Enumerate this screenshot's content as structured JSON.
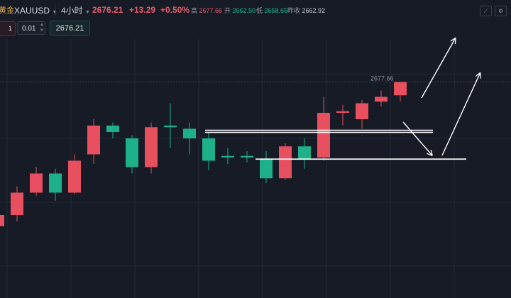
{
  "header": {
    "instrument_cn": "黄金",
    "symbol": "XAUUSD",
    "timeframe": "4小时",
    "last_price": "2676.21",
    "change": "+13.29",
    "change_pct": "+0.50%",
    "ohlc": [
      {
        "label": "高",
        "value": "2677.66",
        "tone": "red"
      },
      {
        "label": "开",
        "value": "2662.50",
        "tone": "green"
      },
      {
        "label": "低",
        "value": "2658.65",
        "tone": "green"
      },
      {
        "label": "昨收",
        "value": "2662.92",
        "tone": "neutral"
      }
    ]
  },
  "order": {
    "left_qty": "1",
    "quantity": "0.01",
    "price": "2676.21"
  },
  "chart_data": {
    "type": "candlestick",
    "price_label": "2677.66",
    "ylim": [
      2610,
      2690
    ],
    "candles": [
      {
        "o": 2632.5,
        "c": 2636.0,
        "h": 2638.0,
        "l": 2630.0
      },
      {
        "o": 2636.0,
        "c": 2643.0,
        "h": 2645.0,
        "l": 2634.0
      },
      {
        "o": 2643.0,
        "c": 2649.0,
        "h": 2651.0,
        "l": 2642.0
      },
      {
        "o": 2649.0,
        "c": 2643.0,
        "h": 2650.5,
        "l": 2640.5
      },
      {
        "o": 2643.0,
        "c": 2653.0,
        "h": 2655.0,
        "l": 2642.5
      },
      {
        "o": 2655.0,
        "c": 2664.0,
        "h": 2666.0,
        "l": 2652.0
      },
      {
        "o": 2664.0,
        "c": 2662.0,
        "h": 2665.0,
        "l": 2660.0
      },
      {
        "o": 2660.0,
        "c": 2651.0,
        "h": 2661.0,
        "l": 2649.0
      },
      {
        "o": 2651.0,
        "c": 2663.5,
        "h": 2665.0,
        "l": 2649.0
      },
      {
        "o": 2664.0,
        "c": 2663.5,
        "h": 2671.0,
        "l": 2657.0
      },
      {
        "o": 2663.0,
        "c": 2660.0,
        "h": 2665.0,
        "l": 2655.0
      },
      {
        "o": 2660.0,
        "c": 2653.0,
        "h": 2662.0,
        "l": 2650.0
      },
      {
        "o": 2654.5,
        "c": 2654.0,
        "h": 2657.0,
        "l": 2652.0
      },
      {
        "o": 2654.5,
        "c": 2654.0,
        "h": 2656.0,
        "l": 2652.5
      },
      {
        "o": 2653.5,
        "c": 2647.5,
        "h": 2656.0,
        "l": 2646.0
      },
      {
        "o": 2647.5,
        "c": 2657.5,
        "h": 2658.5,
        "l": 2647.0
      },
      {
        "o": 2657.5,
        "c": 2653.5,
        "h": 2660.0,
        "l": 2650.5
      },
      {
        "o": 2654.0,
        "c": 2668.0,
        "h": 2673.0,
        "l": 2653.0
      },
      {
        "o": 2668.0,
        "c": 2668.5,
        "h": 2670.5,
        "l": 2664.0
      },
      {
        "o": 2666.0,
        "c": 2671.0,
        "h": 2672.0,
        "l": 2663.0
      },
      {
        "o": 2671.5,
        "c": 2673.0,
        "h": 2675.0,
        "l": 2670.0
      },
      {
        "o": 2673.5,
        "c": 2677.66,
        "h": 2677.66,
        "l": 2671.5
      }
    ],
    "colors": {
      "up": "#e8505f",
      "down": "#1db089",
      "background": "#161b26",
      "grid": "#232938"
    },
    "annotations": {
      "resistance_level": 2662.2,
      "support_level": 2653.5
    }
  }
}
